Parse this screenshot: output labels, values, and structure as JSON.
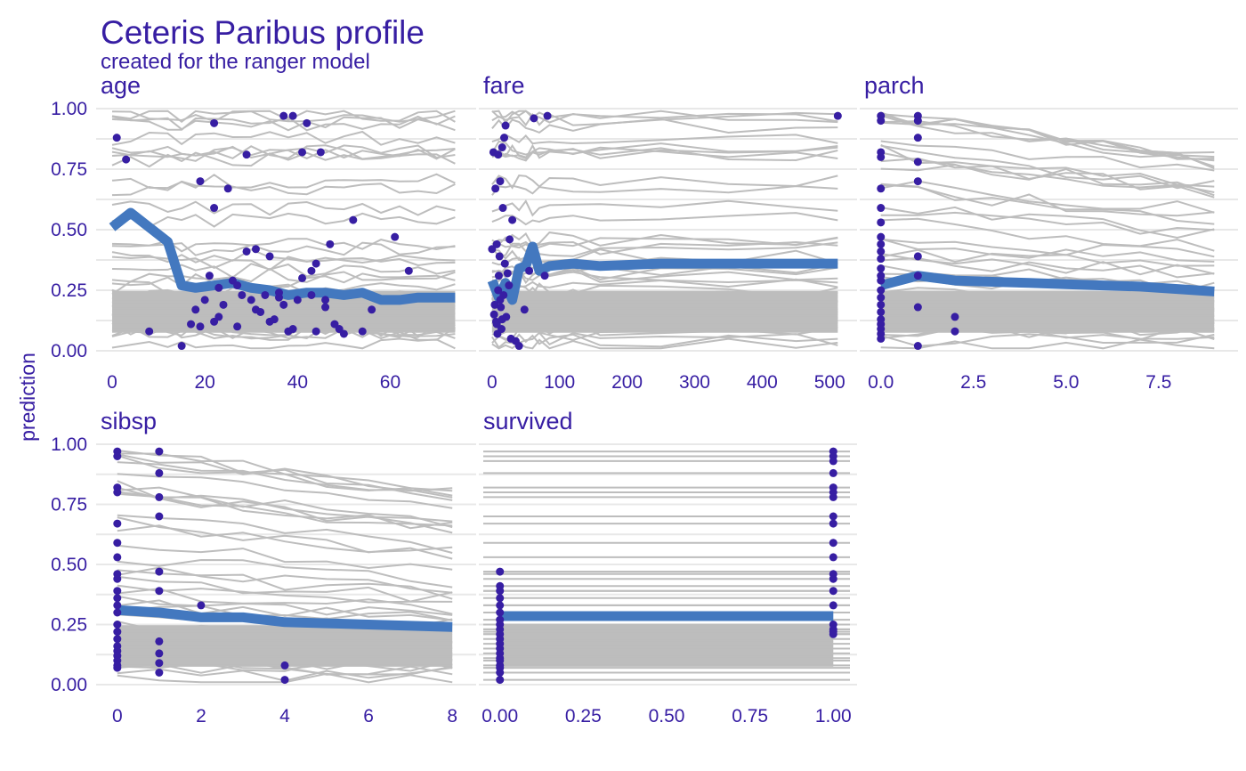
{
  "chart_data": {
    "type": "line",
    "title": "Ceteris Paribus profile",
    "subtitle": "created for the ranger model",
    "ylabel": "prediction",
    "xlabel": "",
    "ylim": [
      0,
      1
    ],
    "y_ticks": [
      0,
      0.25,
      0.5,
      0.75,
      1
    ],
    "y_tick_labels": [
      "0.00",
      "0.25",
      "0.50",
      "0.75",
      "1.00"
    ],
    "grid": true,
    "legend": "none",
    "colors": {
      "text": "#371EA3",
      "profile_line": "#BDBDBD",
      "mean_profile": "#4378BF",
      "observation": "#371EA3",
      "grid": "#E8E8E8"
    },
    "panels": [
      {
        "variable": "age",
        "x_ticks": [
          0,
          20,
          40,
          60
        ],
        "x_tick_labels": [
          "0",
          "20",
          "40",
          "60"
        ],
        "xlim": [
          -2.5,
          77
        ],
        "mean_profile": {
          "x": [
            0,
            4,
            8,
            12,
            15,
            18,
            22,
            26,
            30,
            34,
            38,
            42,
            46,
            50,
            54,
            58,
            62,
            66,
            70,
            74
          ],
          "y": [
            0.51,
            0.57,
            0.51,
            0.45,
            0.27,
            0.26,
            0.27,
            0.28,
            0.26,
            0.25,
            0.23,
            0.24,
            0.24,
            0.23,
            0.24,
            0.21,
            0.21,
            0.22,
            0.22,
            0.22
          ]
        },
        "observations": {
          "x": [
            1,
            3,
            8,
            15,
            17,
            18,
            19,
            20,
            21,
            22,
            22,
            23,
            24,
            25,
            26,
            27,
            28,
            29,
            30,
            31,
            32,
            33,
            34,
            35,
            36,
            37,
            38,
            39,
            40,
            41,
            42,
            43,
            44,
            45,
            46,
            47,
            49,
            50,
            52,
            54,
            56,
            61,
            64,
            22,
            29,
            31,
            36,
            37,
            39,
            41,
            43,
            46,
            19,
            23,
            27,
            34,
            44,
            48
          ],
          "y": [
            0.88,
            0.79,
            0.08,
            0.02,
            0.11,
            0.17,
            0.7,
            0.21,
            0.31,
            0.94,
            0.59,
            0.26,
            0.19,
            0.67,
            0.29,
            0.1,
            0.23,
            0.81,
            0.21,
            0.42,
            0.16,
            0.23,
            0.39,
            0.13,
            0.22,
            0.97,
            0.08,
            0.97,
            0.21,
            0.82,
            0.94,
            0.33,
            0.36,
            0.82,
            0.21,
            0.44,
            0.09,
            0.07,
            0.54,
            0.08,
            0.17,
            0.47,
            0.33,
            0.12,
            0.41,
            0.17,
            0.24,
            0.19,
            0.09,
            0.3,
            0.23,
            0.18,
            0.1,
            0.14,
            0.27,
            0.12,
            0.08,
            0.11
          ]
        },
        "profile_count": 40
      },
      {
        "variable": "fare",
        "x_ticks": [
          0,
          100,
          200,
          300,
          400,
          500
        ],
        "x_tick_labels": [
          "0",
          "100",
          "200",
          "300",
          "400",
          "500"
        ],
        "xlim": [
          -13,
          530
        ],
        "mean_profile": {
          "x": [
            0,
            10,
            20,
            30,
            40,
            50,
            60,
            70,
            85,
            120,
            160,
            250,
            350,
            450,
            512
          ],
          "y": [
            0.29,
            0.22,
            0.28,
            0.21,
            0.34,
            0.35,
            0.43,
            0.33,
            0.35,
            0.36,
            0.35,
            0.36,
            0.36,
            0.36,
            0.36
          ]
        },
        "observations": {
          "x": [
            0,
            2,
            4,
            5,
            6,
            7,
            8,
            9,
            10,
            11,
            12,
            13,
            14,
            15,
            16,
            17,
            18,
            20,
            21,
            23,
            26,
            30,
            35,
            40,
            48,
            55,
            62,
            78,
            82,
            512,
            3,
            7,
            9,
            12,
            15,
            19,
            25,
            28
          ],
          "y": [
            0.42,
            0.82,
            0.19,
            0.67,
            0.12,
            0.44,
            0.07,
            0.81,
            0.31,
            0.39,
            0.7,
            0.18,
            0.09,
            0.84,
            0.59,
            0.23,
            0.88,
            0.93,
            0.14,
            0.32,
            0.46,
            0.54,
            0.04,
            0.02,
            0.17,
            0.33,
            0.96,
            0.31,
            0.97,
            0.97,
            0.15,
            0.11,
            0.25,
            0.21,
            0.13,
            0.36,
            0.27,
            0.05
          ]
        },
        "profile_count": 40
      },
      {
        "variable": "parch",
        "x_ticks": [
          0,
          2.5,
          5,
          7.5
        ],
        "x_tick_labels": [
          "0.0",
          "2.5",
          "5.0",
          "7.5"
        ],
        "xlim": [
          -0.45,
          9.45
        ],
        "mean_profile": {
          "x": [
            0,
            1,
            2,
            3,
            4,
            5,
            6,
            7,
            8,
            9
          ],
          "y": [
            0.27,
            0.31,
            0.29,
            0.285,
            0.28,
            0.275,
            0.27,
            0.265,
            0.255,
            0.245
          ]
        },
        "observations": {
          "x": [
            0,
            0,
            0,
            0,
            0,
            0,
            0,
            0,
            0,
            0,
            0,
            0,
            0,
            0,
            0,
            0,
            0,
            0,
            0,
            0,
            0,
            0,
            0,
            1,
            1,
            1,
            1,
            1,
            1,
            1,
            1,
            1,
            2,
            2
          ],
          "y": [
            0.97,
            0.95,
            0.82,
            0.8,
            0.67,
            0.59,
            0.53,
            0.47,
            0.44,
            0.41,
            0.38,
            0.34,
            0.29,
            0.25,
            0.22,
            0.19,
            0.16,
            0.13,
            0.11,
            0.09,
            0.07,
            0.05,
            0.31,
            0.97,
            0.95,
            0.88,
            0.78,
            0.7,
            0.39,
            0.31,
            0.18,
            0.02,
            0.14,
            0.08
          ]
        },
        "profile_count": 40
      },
      {
        "variable": "sibsp",
        "x_ticks": [
          0,
          2,
          4,
          6,
          8
        ],
        "x_tick_labels": [
          "0",
          "2",
          "4",
          "6",
          "8"
        ],
        "xlim": [
          -0.4,
          8.4
        ],
        "mean_profile": {
          "x": [
            0,
            1,
            2,
            3,
            4,
            5,
            6,
            7,
            8
          ],
          "y": [
            0.31,
            0.3,
            0.28,
            0.28,
            0.26,
            0.255,
            0.25,
            0.245,
            0.24
          ]
        },
        "observations": {
          "x": [
            0,
            0,
            0,
            0,
            0,
            0,
            0,
            0,
            0,
            0,
            0,
            0,
            0,
            0,
            0,
            0,
            0,
            0,
            0,
            0,
            0,
            0,
            1,
            1,
            1,
            1,
            1,
            1,
            1,
            1,
            1,
            1,
            2,
            4,
            4
          ],
          "y": [
            0.97,
            0.95,
            0.82,
            0.8,
            0.67,
            0.59,
            0.53,
            0.46,
            0.44,
            0.39,
            0.36,
            0.33,
            0.3,
            0.25,
            0.22,
            0.19,
            0.16,
            0.14,
            0.12,
            0.1,
            0.08,
            0.07,
            0.97,
            0.88,
            0.78,
            0.7,
            0.47,
            0.39,
            0.18,
            0.13,
            0.09,
            0.05,
            0.33,
            0.08,
            0.02
          ]
        },
        "profile_count": 40
      },
      {
        "variable": "survived",
        "x_ticks": [
          0,
          0.25,
          0.5,
          0.75,
          1
        ],
        "x_tick_labels": [
          "0.00",
          "0.25",
          "0.50",
          "0.75",
          "1.00"
        ],
        "xlim": [
          -0.05,
          1.05
        ],
        "mean_profile": {
          "x": [
            0,
            1
          ],
          "y": [
            0.285,
            0.285
          ]
        },
        "observations": {
          "x": [
            0,
            0,
            0,
            0,
            0,
            0,
            0,
            0,
            0,
            0,
            0,
            0,
            0,
            0,
            0,
            0,
            0,
            0,
            0,
            0,
            1,
            1,
            1,
            1,
            1,
            1,
            1,
            1,
            1,
            1,
            1,
            1,
            1,
            1,
            1,
            1,
            1,
            1,
            1
          ],
          "y": [
            0.47,
            0.41,
            0.39,
            0.36,
            0.33,
            0.3,
            0.25,
            0.23,
            0.21,
            0.19,
            0.17,
            0.15,
            0.13,
            0.11,
            0.1,
            0.08,
            0.07,
            0.05,
            0.02,
            0.27,
            0.97,
            0.95,
            0.93,
            0.88,
            0.82,
            0.8,
            0.78,
            0.7,
            0.67,
            0.59,
            0.53,
            0.46,
            0.44,
            0.39,
            0.33,
            0.25,
            0.23,
            0.21,
            0.22
          ]
        },
        "profile_count": 40
      }
    ]
  }
}
